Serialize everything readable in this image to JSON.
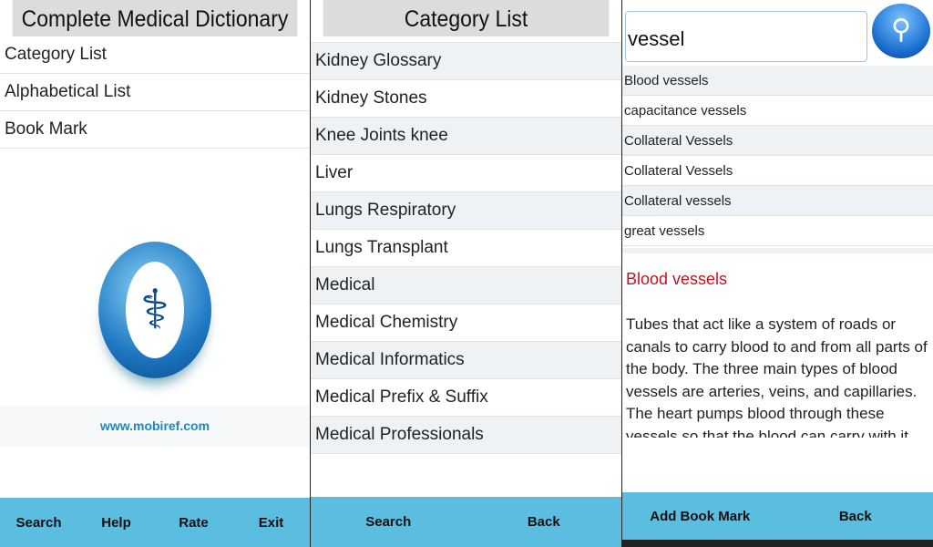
{
  "home": {
    "title": "Complete Medical Dictionary",
    "menu": [
      "Category List",
      "Alphabetical List",
      "Book Mark"
    ],
    "url": "www.mobiref.com",
    "buttons": [
      "Search",
      "Help",
      "Rate",
      "Exit"
    ]
  },
  "category": {
    "title": "Category List",
    "items": [
      "Kidney Glossary",
      "Kidney Stones",
      "Knee Joints knee",
      "Liver",
      "Lungs Respiratory",
      "Lungs Transplant",
      "Medical",
      "Medical Chemistry",
      "Medical Informatics",
      "Medical Prefix & Suffix",
      "Medical Professionals"
    ],
    "buttons": [
      "Search",
      "Back"
    ]
  },
  "search": {
    "query": "vessel",
    "results": [
      "Blood vessels",
      "capacitance vessels",
      "Collateral Vessels",
      "Collateral Vessels",
      "Collateral vessels",
      "great vessels"
    ],
    "detail_title": "Blood vessels",
    "detail_body": "Tubes that act like a system of roads or canals to carry blood to and from all parts of the body. The three main types of blood vessels are arteries, veins, and capillaries. The heart pumps blood through these vessels so that the blood can carry with it oxygen and",
    "buttons": [
      "Add Book Mark",
      "Back"
    ]
  },
  "colors": {
    "bar": "#5bbde0",
    "accent": "#c8101a",
    "link": "#1a8bbf"
  }
}
